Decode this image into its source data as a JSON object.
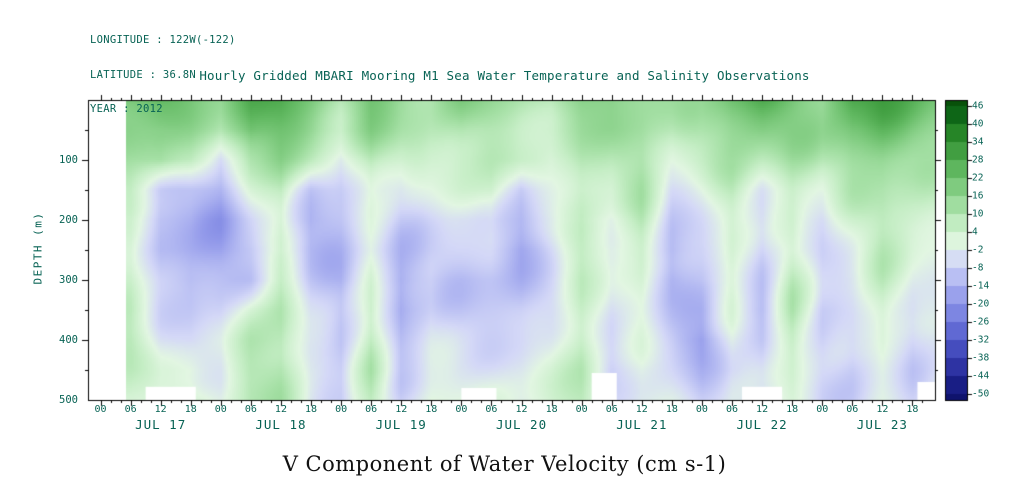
{
  "header": {
    "info_lines": [
      "LONGITUDE : 122W(-122)",
      "LATITUDE : 36.8N",
      "YEAR : 2012"
    ],
    "title": "Hourly Gridded MBARI Mooring M1 Sea Water Temperature and Salinity Observations"
  },
  "colors": {
    "label_text": "#086355",
    "axis": "#000000",
    "footer_text": "#111111",
    "background": "#ffffff"
  },
  "chart_data": {
    "type": "heatmap",
    "title": "Hourly Gridded MBARI Mooring M1 Sea Water Temperature and Salinity Observations",
    "variable": "V Component of Water Velocity (cm s-1)",
    "units": "cm s-1",
    "ylabel": "DEPTH (m)",
    "y_ticks": [
      100,
      200,
      300,
      400,
      500
    ],
    "y_range": [
      0,
      500
    ],
    "x_axis": {
      "hours_range": [
        -2.5,
        166.5
      ],
      "hour_tick_step": 6,
      "hour_tick_labels": [
        "00",
        "06",
        "12",
        "18"
      ],
      "day_labels": [
        "JUL 17",
        "JUL 18",
        "JUL 19",
        "JUL 20",
        "JUL 21",
        "JUL 22",
        "JUL 23"
      ]
    },
    "colorbar": {
      "tick_labels": [
        46,
        40,
        34,
        28,
        22,
        16,
        10,
        4,
        -2,
        -8,
        -14,
        -20,
        -26,
        -32,
        -38,
        -44,
        -50
      ],
      "value_range": [
        -52,
        48
      ],
      "palette": [
        {
          "v": 48,
          "c": "#074c07"
        },
        {
          "v": 42,
          "c": "#0f6b1a"
        },
        {
          "v": 36,
          "c": "#2a8a2a"
        },
        {
          "v": 30,
          "c": "#45a245"
        },
        {
          "v": 24,
          "c": "#63ba63"
        },
        {
          "v": 18,
          "c": "#84ce84"
        },
        {
          "v": 12,
          "c": "#a5e0a5"
        },
        {
          "v": 6,
          "c": "#c6eec6"
        },
        {
          "v": 0,
          "c": "#e2f6e2"
        },
        {
          "v": -6,
          "c": "#d4d8f7"
        },
        {
          "v": -12,
          "c": "#b4baf2"
        },
        {
          "v": -18,
          "c": "#959ceb"
        },
        {
          "v": -24,
          "c": "#7881e0"
        },
        {
          "v": -30,
          "c": "#5b64d0"
        },
        {
          "v": -36,
          "c": "#4148ba"
        },
        {
          "v": -42,
          "c": "#2a2f9e"
        },
        {
          "v": -48,
          "c": "#161b80"
        },
        {
          "v": -52,
          "c": "#0c1066"
        }
      ]
    },
    "grid": {
      "hours_start": 6,
      "hours_step": 6,
      "depths": [
        0,
        50,
        100,
        150,
        200,
        250,
        300,
        350,
        400,
        450,
        500
      ],
      "values": [
        [
          22,
          24,
          20,
          15,
          25,
          25,
          18,
          10,
          20,
          15,
          12,
          18,
          15,
          12,
          10,
          18,
          20,
          15,
          12,
          12,
          22,
          25,
          20,
          15,
          28,
          30,
          25,
          20
        ],
        [
          18,
          16,
          14,
          8,
          22,
          20,
          14,
          6,
          16,
          10,
          8,
          12,
          10,
          8,
          8,
          14,
          15,
          14,
          8,
          10,
          16,
          18,
          16,
          12,
          20,
          22,
          18,
          16
        ],
        [
          12,
          14,
          8,
          -6,
          12,
          16,
          6,
          -4,
          10,
          4,
          4,
          8,
          8,
          4,
          2,
          10,
          8,
          12,
          2,
          6,
          10,
          8,
          12,
          8,
          15,
          16,
          12,
          10
        ],
        [
          6,
          -8,
          -10,
          -14,
          2,
          10,
          -8,
          -8,
          4,
          -4,
          -2,
          2,
          4,
          -10,
          -2,
          6,
          2,
          10,
          -6,
          0,
          8,
          -2,
          8,
          2,
          10,
          12,
          8,
          6
        ],
        [
          2,
          -12,
          -12,
          -18,
          -6,
          6,
          -12,
          -10,
          0,
          -8,
          -6,
          -6,
          -4,
          -14,
          -6,
          4,
          -2,
          8,
          -10,
          -4,
          6,
          -6,
          6,
          -4,
          4,
          10,
          6,
          2
        ],
        [
          4,
          -12,
          -14,
          -16,
          -10,
          2,
          -12,
          -12,
          -2,
          -12,
          -8,
          -8,
          -8,
          -16,
          -6,
          6,
          0,
          6,
          -14,
          -8,
          4,
          -8,
          4,
          -6,
          0,
          8,
          2,
          0
        ],
        [
          6,
          -8,
          -14,
          -12,
          -10,
          4,
          -10,
          -14,
          2,
          -16,
          -8,
          -10,
          -10,
          -12,
          -4,
          8,
          -2,
          4,
          -14,
          -10,
          2,
          -10,
          6,
          -8,
          -4,
          6,
          -2,
          -2
        ],
        [
          8,
          -6,
          -10,
          -8,
          2,
          8,
          -8,
          -12,
          6,
          -16,
          -6,
          -8,
          -8,
          -8,
          -4,
          8,
          -4,
          2,
          -10,
          -16,
          0,
          -12,
          8,
          -10,
          -6,
          4,
          -6,
          -4
        ],
        [
          8,
          -4,
          -6,
          -4,
          8,
          10,
          -4,
          -10,
          8,
          -12,
          -4,
          -6,
          -6,
          -6,
          -2,
          8,
          -6,
          0,
          -8,
          -18,
          -2,
          -10,
          8,
          -8,
          -8,
          2,
          -8,
          -4
        ],
        [
          6,
          0,
          2,
          -2,
          10,
          12,
          -2,
          -8,
          10,
          -8,
          -2,
          -4,
          -4,
          -4,
          0,
          8,
          -8,
          -2,
          -6,
          -12,
          -4,
          -6,
          6,
          -6,
          -8,
          0,
          -8,
          -2
        ],
        [
          4,
          2,
          4,
          0,
          10,
          12,
          0,
          -6,
          8,
          -6,
          0,
          -2,
          -2,
          -2,
          2,
          6,
          -6,
          -2,
          -4,
          -8,
          -2,
          -4,
          4,
          -4,
          -6,
          -2,
          -6,
          0
        ]
      ]
    },
    "data_start_hour": 5.2,
    "data_end_hour": 166.5,
    "missing_regions": [
      {
        "from_hour": 9,
        "to_hour": 19,
        "from_depth": 478
      },
      {
        "from_hour": 72,
        "to_hour": 79,
        "from_depth": 480
      },
      {
        "from_hour": 98,
        "to_hour": 103,
        "from_depth": 455
      },
      {
        "from_hour": 128,
        "to_hour": 136,
        "from_depth": 478
      },
      {
        "from_hour": 163,
        "to_hour": 167,
        "from_depth": 470
      }
    ]
  }
}
